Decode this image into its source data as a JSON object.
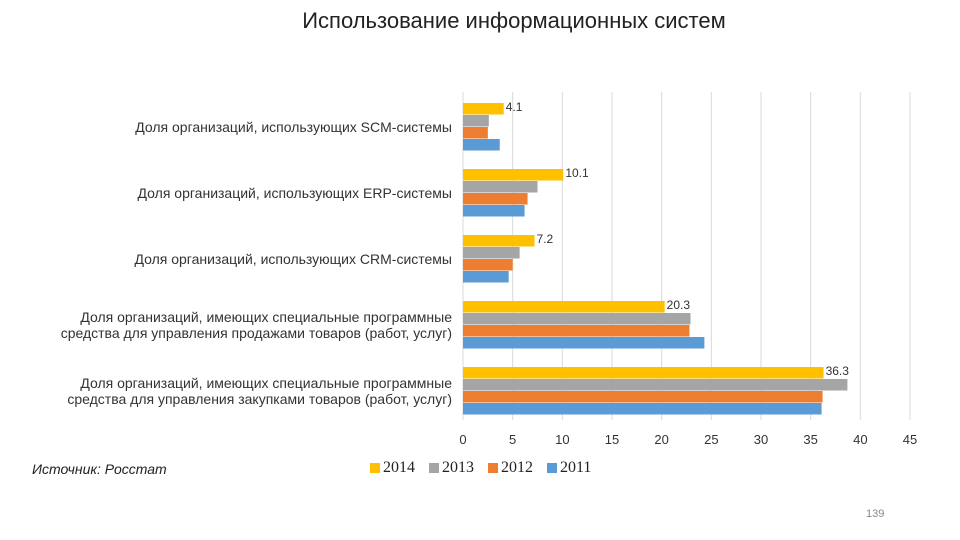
{
  "title": "Использование информационных систем",
  "source": "Источник: Росстат",
  "page_number": "139",
  "colors": {
    "2014": "#FFC000",
    "2013": "#A5A5A5",
    "2012": "#ED7D31",
    "2011": "#5B9BD5",
    "grid": "#d9d9d9"
  },
  "chart_data": {
    "type": "bar",
    "orientation": "horizontal",
    "title": "Использование информационных систем",
    "categories": [
      "Доля организаций, использующих SCM-системы",
      "Доля организаций, использующих ERP-системы",
      "Доля организаций, использующих CRM-системы",
      "Доля организаций, имеющих специальные программные средства для управления продажами товаров (работ, услуг)",
      "Доля организаций, имеющих специальные программные средства для управления закупками товаров (работ, услуг)"
    ],
    "series": [
      {
        "name": "2014",
        "values": [
          4.1,
          10.1,
          7.2,
          20.3,
          36.3
        ]
      },
      {
        "name": "2013",
        "values": [
          2.6,
          7.5,
          5.7,
          22.9,
          38.7
        ]
      },
      {
        "name": "2012",
        "values": [
          2.5,
          6.5,
          5.0,
          22.8,
          36.2
        ]
      },
      {
        "name": "2011",
        "values": [
          3.7,
          6.2,
          4.6,
          24.3,
          36.1
        ]
      }
    ],
    "data_labels_series": "2014",
    "data_labels": [
      "4.1",
      "10.1",
      "7.2",
      "20.3",
      "36.3"
    ],
    "x_ticks": [
      "0",
      "5",
      "10",
      "15",
      "20",
      "25",
      "30",
      "35",
      "40",
      "45"
    ],
    "xlim": [
      0,
      45
    ],
    "grid": true,
    "legend_position": "bottom"
  },
  "legend": [
    {
      "label": "2014",
      "color": "#FFC000"
    },
    {
      "label": "2013",
      "color": "#A5A5A5"
    },
    {
      "label": "2012",
      "color": "#ED7D31"
    },
    {
      "label": "2011",
      "color": "#5B9BD5"
    }
  ],
  "category_label_lines": [
    [
      "Доля организаций, использующих SCM-системы"
    ],
    [
      "Доля организаций, использующих ERP-системы"
    ],
    [
      "Доля организаций, использующих CRM-системы"
    ],
    [
      "Доля организаций, имеющих специальные программные",
      "средства для управления продажами товаров (работ, услуг)"
    ],
    [
      "Доля организаций, имеющих специальные программные",
      "средства для управления закупками товаров (работ, услуг)"
    ]
  ]
}
